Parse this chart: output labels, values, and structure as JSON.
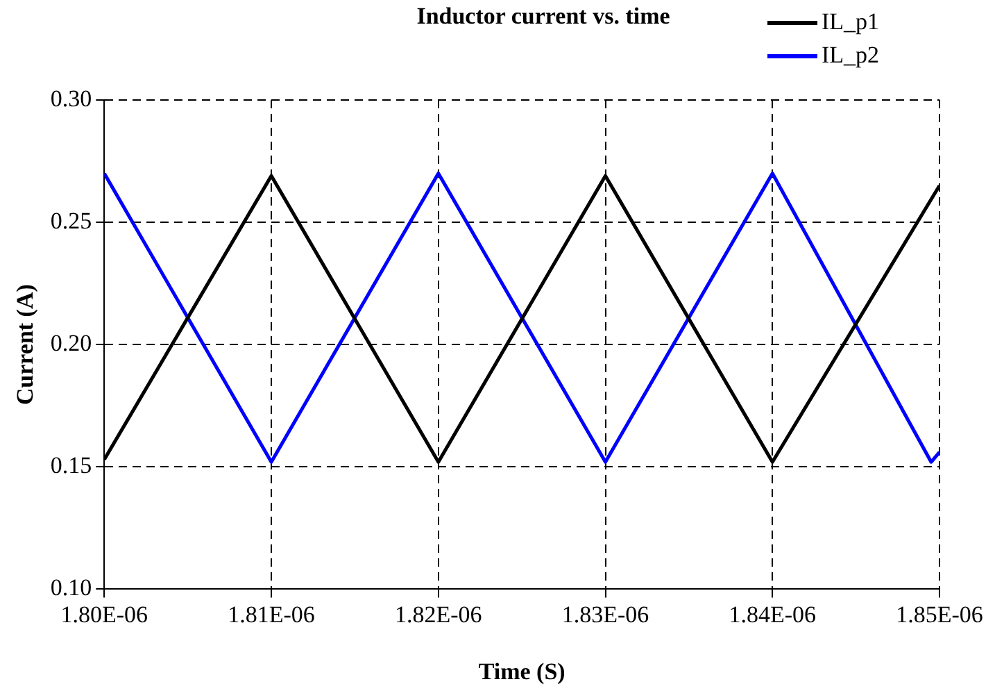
{
  "chart_data": {
    "type": "line",
    "title": "Inductor current vs. time",
    "xlabel": "Time (S)",
    "ylabel": "Current (A)",
    "series": [
      {
        "name": "IL_p1",
        "color": "#000000",
        "x": [
          1.8e-06,
          1.81e-06,
          1.82e-06,
          1.83e-06,
          1.84e-06,
          1.85e-06
        ],
        "values": [
          0.153,
          0.269,
          0.152,
          0.269,
          0.152,
          0.265
        ]
      },
      {
        "name": "IL_p2",
        "color": "#0000ff",
        "x": [
          1.8e-06,
          1.81e-06,
          1.82e-06,
          1.83e-06,
          1.84e-06,
          1.8495e-06,
          1.85e-06
        ],
        "values": [
          0.27,
          0.152,
          0.27,
          0.152,
          0.27,
          0.152,
          0.156
        ]
      }
    ],
    "xlim": [
      1.8e-06,
      1.85e-06
    ],
    "xticks": [
      {
        "value": 1.8e-06,
        "label": "1.80E-06"
      },
      {
        "value": 1.81e-06,
        "label": "1.81E-06"
      },
      {
        "value": 1.82e-06,
        "label": "1.82E-06"
      },
      {
        "value": 1.83e-06,
        "label": "1.83E-06"
      },
      {
        "value": 1.84e-06,
        "label": "1.84E-06"
      },
      {
        "value": 1.85e-06,
        "label": "1.85E-06"
      }
    ],
    "ylim": [
      0.1,
      0.3
    ],
    "yticks": [
      {
        "value": 0.1,
        "label": "0.10"
      },
      {
        "value": 0.15,
        "label": "0.15"
      },
      {
        "value": 0.2,
        "label": "0.20"
      },
      {
        "value": 0.25,
        "label": "0.25"
      },
      {
        "value": 0.3,
        "label": "0.30"
      }
    ],
    "grid": true,
    "legend": "top right",
    "marker": "none",
    "line_style": "solid"
  }
}
